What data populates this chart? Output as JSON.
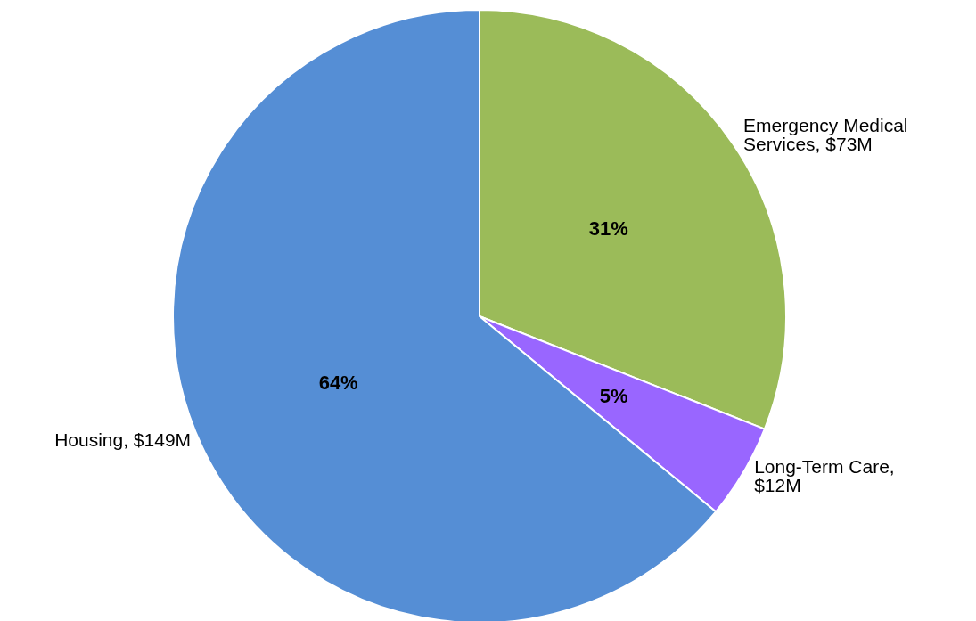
{
  "chart_data": {
    "type": "pie",
    "categories": [
      "Emergency Medical Services, $73M",
      "Long-Term Care, $12M",
      "Housing, $149M"
    ],
    "values": [
      31,
      5,
      64
    ],
    "value_labels": [
      "31%",
      "5%",
      "64%"
    ],
    "colors": [
      "#9bbb59",
      "#9966ff",
      "#558ed5"
    ]
  }
}
